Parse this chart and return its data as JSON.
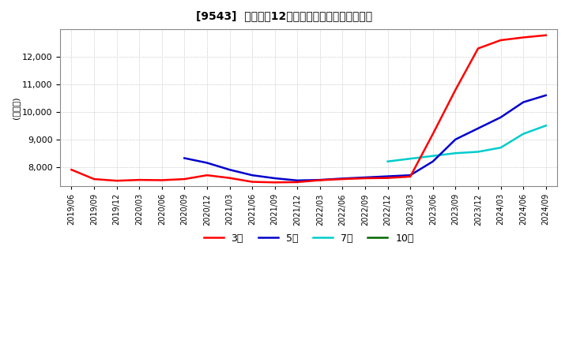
{
  "title": "[9543]  経常利益12か月移動合計の平均値の推移",
  "ylabel": "(百万円)",
  "background_color": "#ffffff",
  "plot_bg_color": "#ffffff",
  "grid_color": "#aaaaaa",
  "ylim": [
    7300,
    13000
  ],
  "yticks": [
    8000,
    9000,
    10000,
    11000,
    12000
  ],
  "legend": [
    "3年",
    "5年",
    "7年",
    "10年"
  ],
  "legend_colors": [
    "#ff0000",
    "#0000cc",
    "#00cccc",
    "#006600"
  ],
  "x_labels": [
    "2019/06",
    "2019/09",
    "2019/12",
    "2020/03",
    "2020/06",
    "2020/09",
    "2020/12",
    "2021/03",
    "2021/06",
    "2021/09",
    "2021/12",
    "2022/03",
    "2022/06",
    "2022/09",
    "2022/12",
    "2023/03",
    "2023/06",
    "2023/09",
    "2023/12",
    "2024/03",
    "2024/06",
    "2024/09"
  ],
  "series_3yr": [
    7900,
    7560,
    7500,
    7530,
    7520,
    7560,
    7700,
    7600,
    7460,
    7440,
    7450,
    7520,
    7560,
    7590,
    7600,
    7650,
    9200,
    10800,
    12300,
    12600,
    12700,
    12780
  ],
  "series_5yr": [
    null,
    null,
    null,
    null,
    null,
    8320,
    8150,
    7900,
    7700,
    7590,
    7510,
    7530,
    7580,
    7620,
    7660,
    7700,
    8200,
    9000,
    9400,
    9800,
    10350,
    10600
  ],
  "series_7yr": [
    null,
    null,
    null,
    null,
    null,
    null,
    null,
    null,
    null,
    null,
    null,
    null,
    null,
    null,
    8200,
    8300,
    8400,
    8500,
    8550,
    8700,
    9200,
    9500
  ],
  "series_10yr": [
    null,
    null,
    null,
    null,
    null,
    null,
    null,
    null,
    null,
    null,
    null,
    null,
    null,
    null,
    null,
    null,
    null,
    null,
    null,
    null,
    null,
    null
  ]
}
